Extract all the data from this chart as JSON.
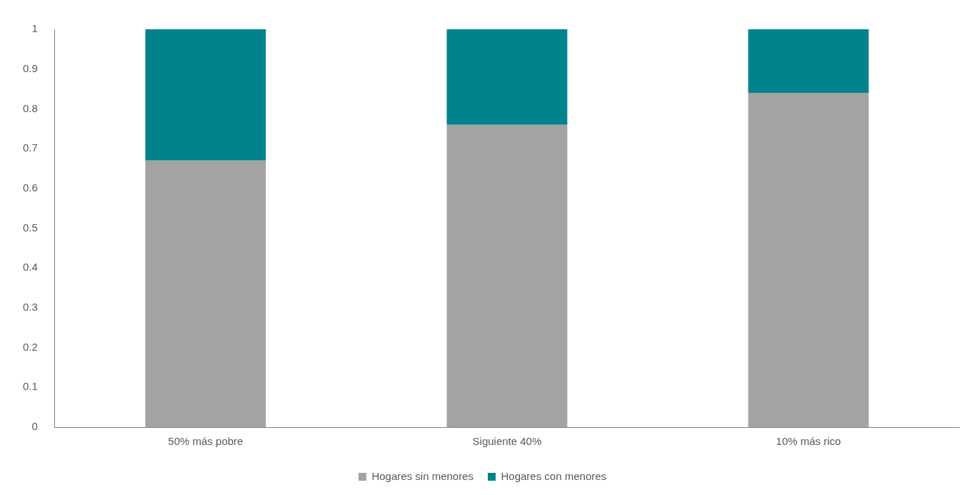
{
  "chart_data": {
    "type": "bar",
    "stacked": true,
    "categories": [
      "50% más pobre",
      "Siguiente 40%",
      "10% más rico"
    ],
    "series": [
      {
        "name": "Hogares sin menores",
        "color": "#a3a3a3",
        "values": [
          0.67,
          0.76,
          0.84
        ]
      },
      {
        "name": "Hogares con menores",
        "color": "#00838c",
        "values": [
          0.33,
          0.24,
          0.16
        ]
      }
    ],
    "ylim": [
      0,
      1
    ],
    "yticks": [
      0,
      0.1,
      0.2,
      0.3,
      0.4,
      0.5,
      0.6,
      0.7,
      0.8,
      0.9,
      1
    ],
    "grid": false,
    "legend": "bottom"
  }
}
